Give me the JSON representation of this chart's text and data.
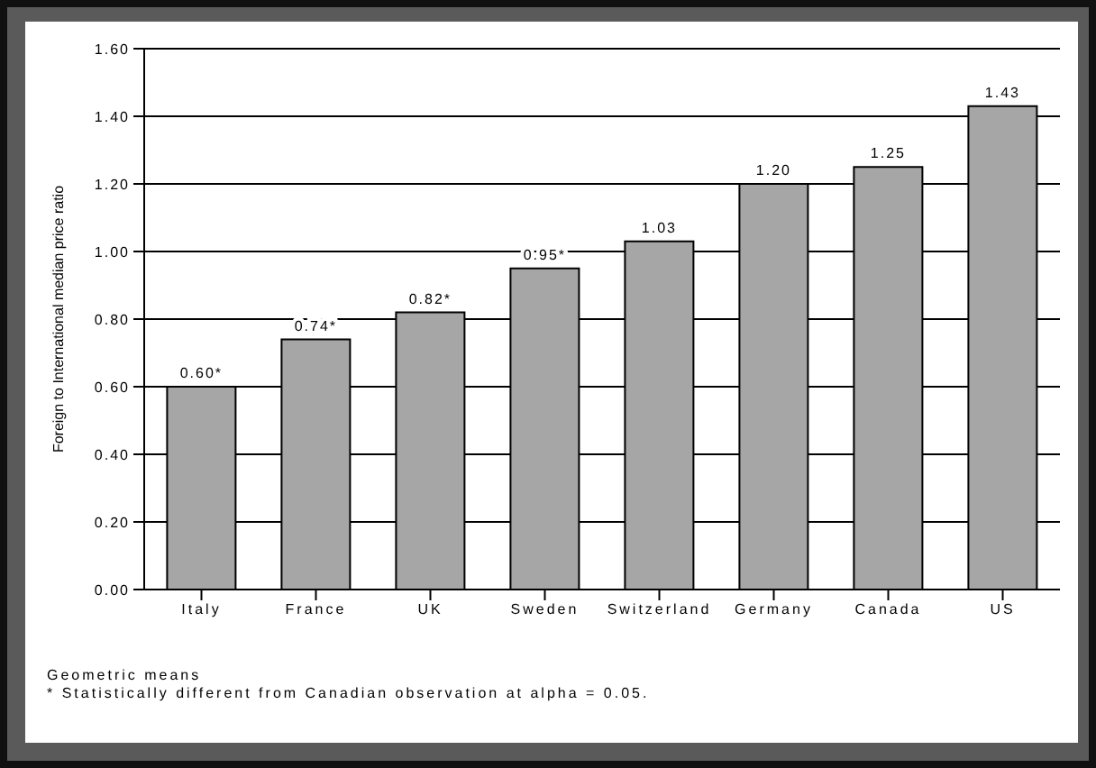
{
  "chart_data": {
    "type": "bar",
    "ylabel": "Foreign to International median price ratio",
    "categories": [
      "Italy",
      "France",
      "UK",
      "Sweden",
      "Switzerland",
      "Germany",
      "Canada",
      "US"
    ],
    "values": [
      0.6,
      0.74,
      0.82,
      0.95,
      1.03,
      1.2,
      1.25,
      1.43
    ],
    "value_labels": [
      "0.60*",
      "0.74*",
      "0.82*",
      "0.95*",
      "1.03",
      "1.20",
      "1.25",
      "1.43"
    ],
    "color": "#a6a6a6",
    "ylim": [
      0,
      1.6
    ],
    "yticks": [
      {
        "value": 0,
        "label": "0.00"
      },
      {
        "value": 0.2,
        "label": "0.20"
      },
      {
        "value": 0.4,
        "label": "0.40"
      },
      {
        "value": 0.6,
        "label": "0.60"
      },
      {
        "value": 0.8,
        "label": "0.80"
      },
      {
        "value": 1,
        "label": "1.00"
      },
      {
        "value": 1.2,
        "label": "1.20"
      },
      {
        "value": 1.4,
        "label": "1.40"
      },
      {
        "value": 1.6,
        "label": "1.60"
      }
    ],
    "grid": "y",
    "annotations": [
      "Geometric means",
      "* Statistically different from Canadian observation at alpha = 0.05."
    ]
  }
}
